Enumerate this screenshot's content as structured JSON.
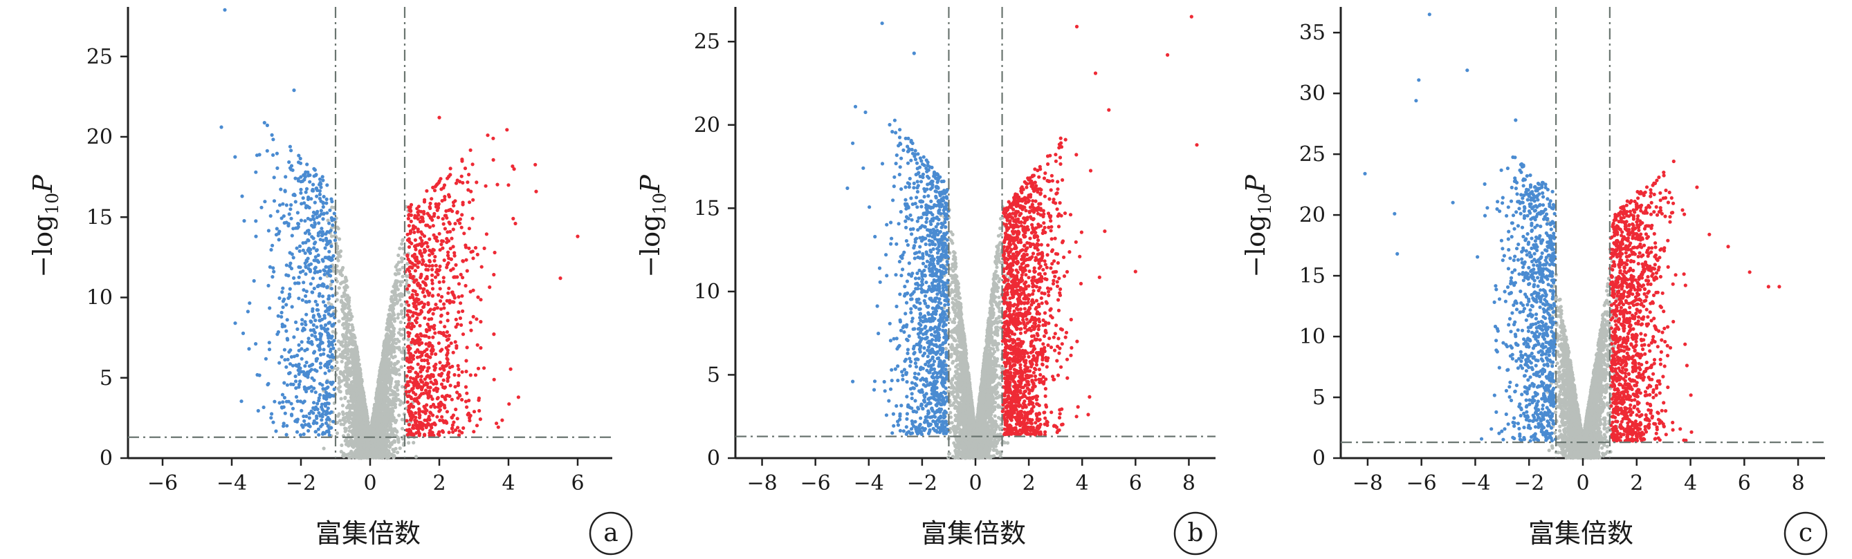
{
  "chart_data": [
    {
      "type": "scatter",
      "panel": "a",
      "xlabel": "富集倍数",
      "ylabel_main": "−log",
      "ylabel_sub": "10",
      "ylabel_var": "P",
      "xlim": [
        -7,
        7
      ],
      "ylim": [
        0,
        28
      ],
      "xticks": [
        -6,
        -4,
        -2,
        0,
        2,
        4,
        6
      ],
      "yticks": [
        0,
        5,
        10,
        15,
        20,
        25
      ],
      "thresholds": {
        "fc_left": -1,
        "fc_right": 1,
        "p_line": 1.3
      },
      "colors": {
        "down": "#4a8bd1",
        "up": "#ee2a35",
        "ns": "#b9bfbb"
      },
      "grid": false,
      "approx_counts": {
        "down": 700,
        "up": 900,
        "ns": 3500
      },
      "outliers_down": [
        [
          -4.2,
          27.9
        ],
        [
          -4.3,
          20.6
        ],
        [
          -2.2,
          22.9
        ],
        [
          -3.7,
          16.3
        ],
        [
          -3.3,
          13.8
        ],
        [
          -3.9,
          8.4
        ],
        [
          -3.5,
          6.8
        ]
      ],
      "outliers_up": [
        [
          6.0,
          13.8
        ],
        [
          5.5,
          11.2
        ],
        [
          4.8,
          16.6
        ],
        [
          4.0,
          17.0
        ],
        [
          3.4,
          20.1
        ],
        [
          2.0,
          21.2
        ],
        [
          4.2,
          14.6
        ]
      ]
    },
    {
      "type": "scatter",
      "panel": "b",
      "xlabel": "富集倍数",
      "ylabel_main": "−log",
      "ylabel_sub": "10",
      "ylabel_var": "P",
      "xlim": [
        -9,
        9
      ],
      "ylim": [
        0,
        27
      ],
      "xticks": [
        -8,
        -6,
        -4,
        -2,
        0,
        2,
        4,
        6,
        8
      ],
      "yticks": [
        0,
        5,
        10,
        15,
        20,
        25
      ],
      "thresholds": {
        "fc_left": -1,
        "fc_right": 1,
        "p_line": 1.3
      },
      "colors": {
        "down": "#4a8bd1",
        "up": "#ee2a35",
        "ns": "#b9bfbb"
      },
      "grid": false,
      "approx_counts": {
        "down": 1100,
        "up": 1500,
        "ns": 4000
      },
      "outliers_down": [
        [
          -3.5,
          26.1
        ],
        [
          -4.5,
          21.1
        ],
        [
          -4.6,
          18.9
        ],
        [
          -4.8,
          16.2
        ],
        [
          -4.6,
          4.6
        ],
        [
          -3.8,
          4.1
        ],
        [
          -2.3,
          24.3
        ]
      ],
      "outliers_up": [
        [
          8.1,
          26.5
        ],
        [
          7.2,
          24.2
        ],
        [
          3.8,
          25.9
        ],
        [
          8.3,
          18.8
        ],
        [
          5.0,
          20.9
        ],
        [
          6.0,
          11.2
        ],
        [
          4.5,
          23.1
        ]
      ]
    },
    {
      "type": "scatter",
      "panel": "c",
      "xlabel": "富集倍数",
      "ylabel_main": "−log",
      "ylabel_sub": "10",
      "ylabel_var": "P",
      "xlim": [
        -9,
        9
      ],
      "ylim": [
        0,
        37
      ],
      "xticks": [
        -8,
        -6,
        -4,
        -2,
        0,
        2,
        4,
        6,
        8
      ],
      "yticks": [
        0,
        5,
        10,
        15,
        20,
        25,
        30,
        35
      ],
      "thresholds": {
        "fc_left": -1,
        "fc_right": 1,
        "p_line": 1.3
      },
      "colors": {
        "down": "#4a8bd1",
        "up": "#ee2a35",
        "ns": "#b9bfbb"
      },
      "grid": false,
      "approx_counts": {
        "down": 900,
        "up": 1200,
        "ns": 3500
      },
      "outliers_down": [
        [
          -5.7,
          36.5
        ],
        [
          -6.1,
          31.1
        ],
        [
          -4.3,
          31.9
        ],
        [
          -6.2,
          29.4
        ],
        [
          -8.1,
          23.4
        ],
        [
          -7.0,
          20.1
        ],
        [
          -6.9,
          16.8
        ],
        [
          -2.5,
          27.8
        ]
      ],
      "outliers_up": [
        [
          7.3,
          14.1
        ],
        [
          6.9,
          14.1
        ],
        [
          6.2,
          15.3
        ],
        [
          5.4,
          17.4
        ],
        [
          4.7,
          18.4
        ],
        [
          3.3,
          21.4
        ]
      ]
    }
  ]
}
